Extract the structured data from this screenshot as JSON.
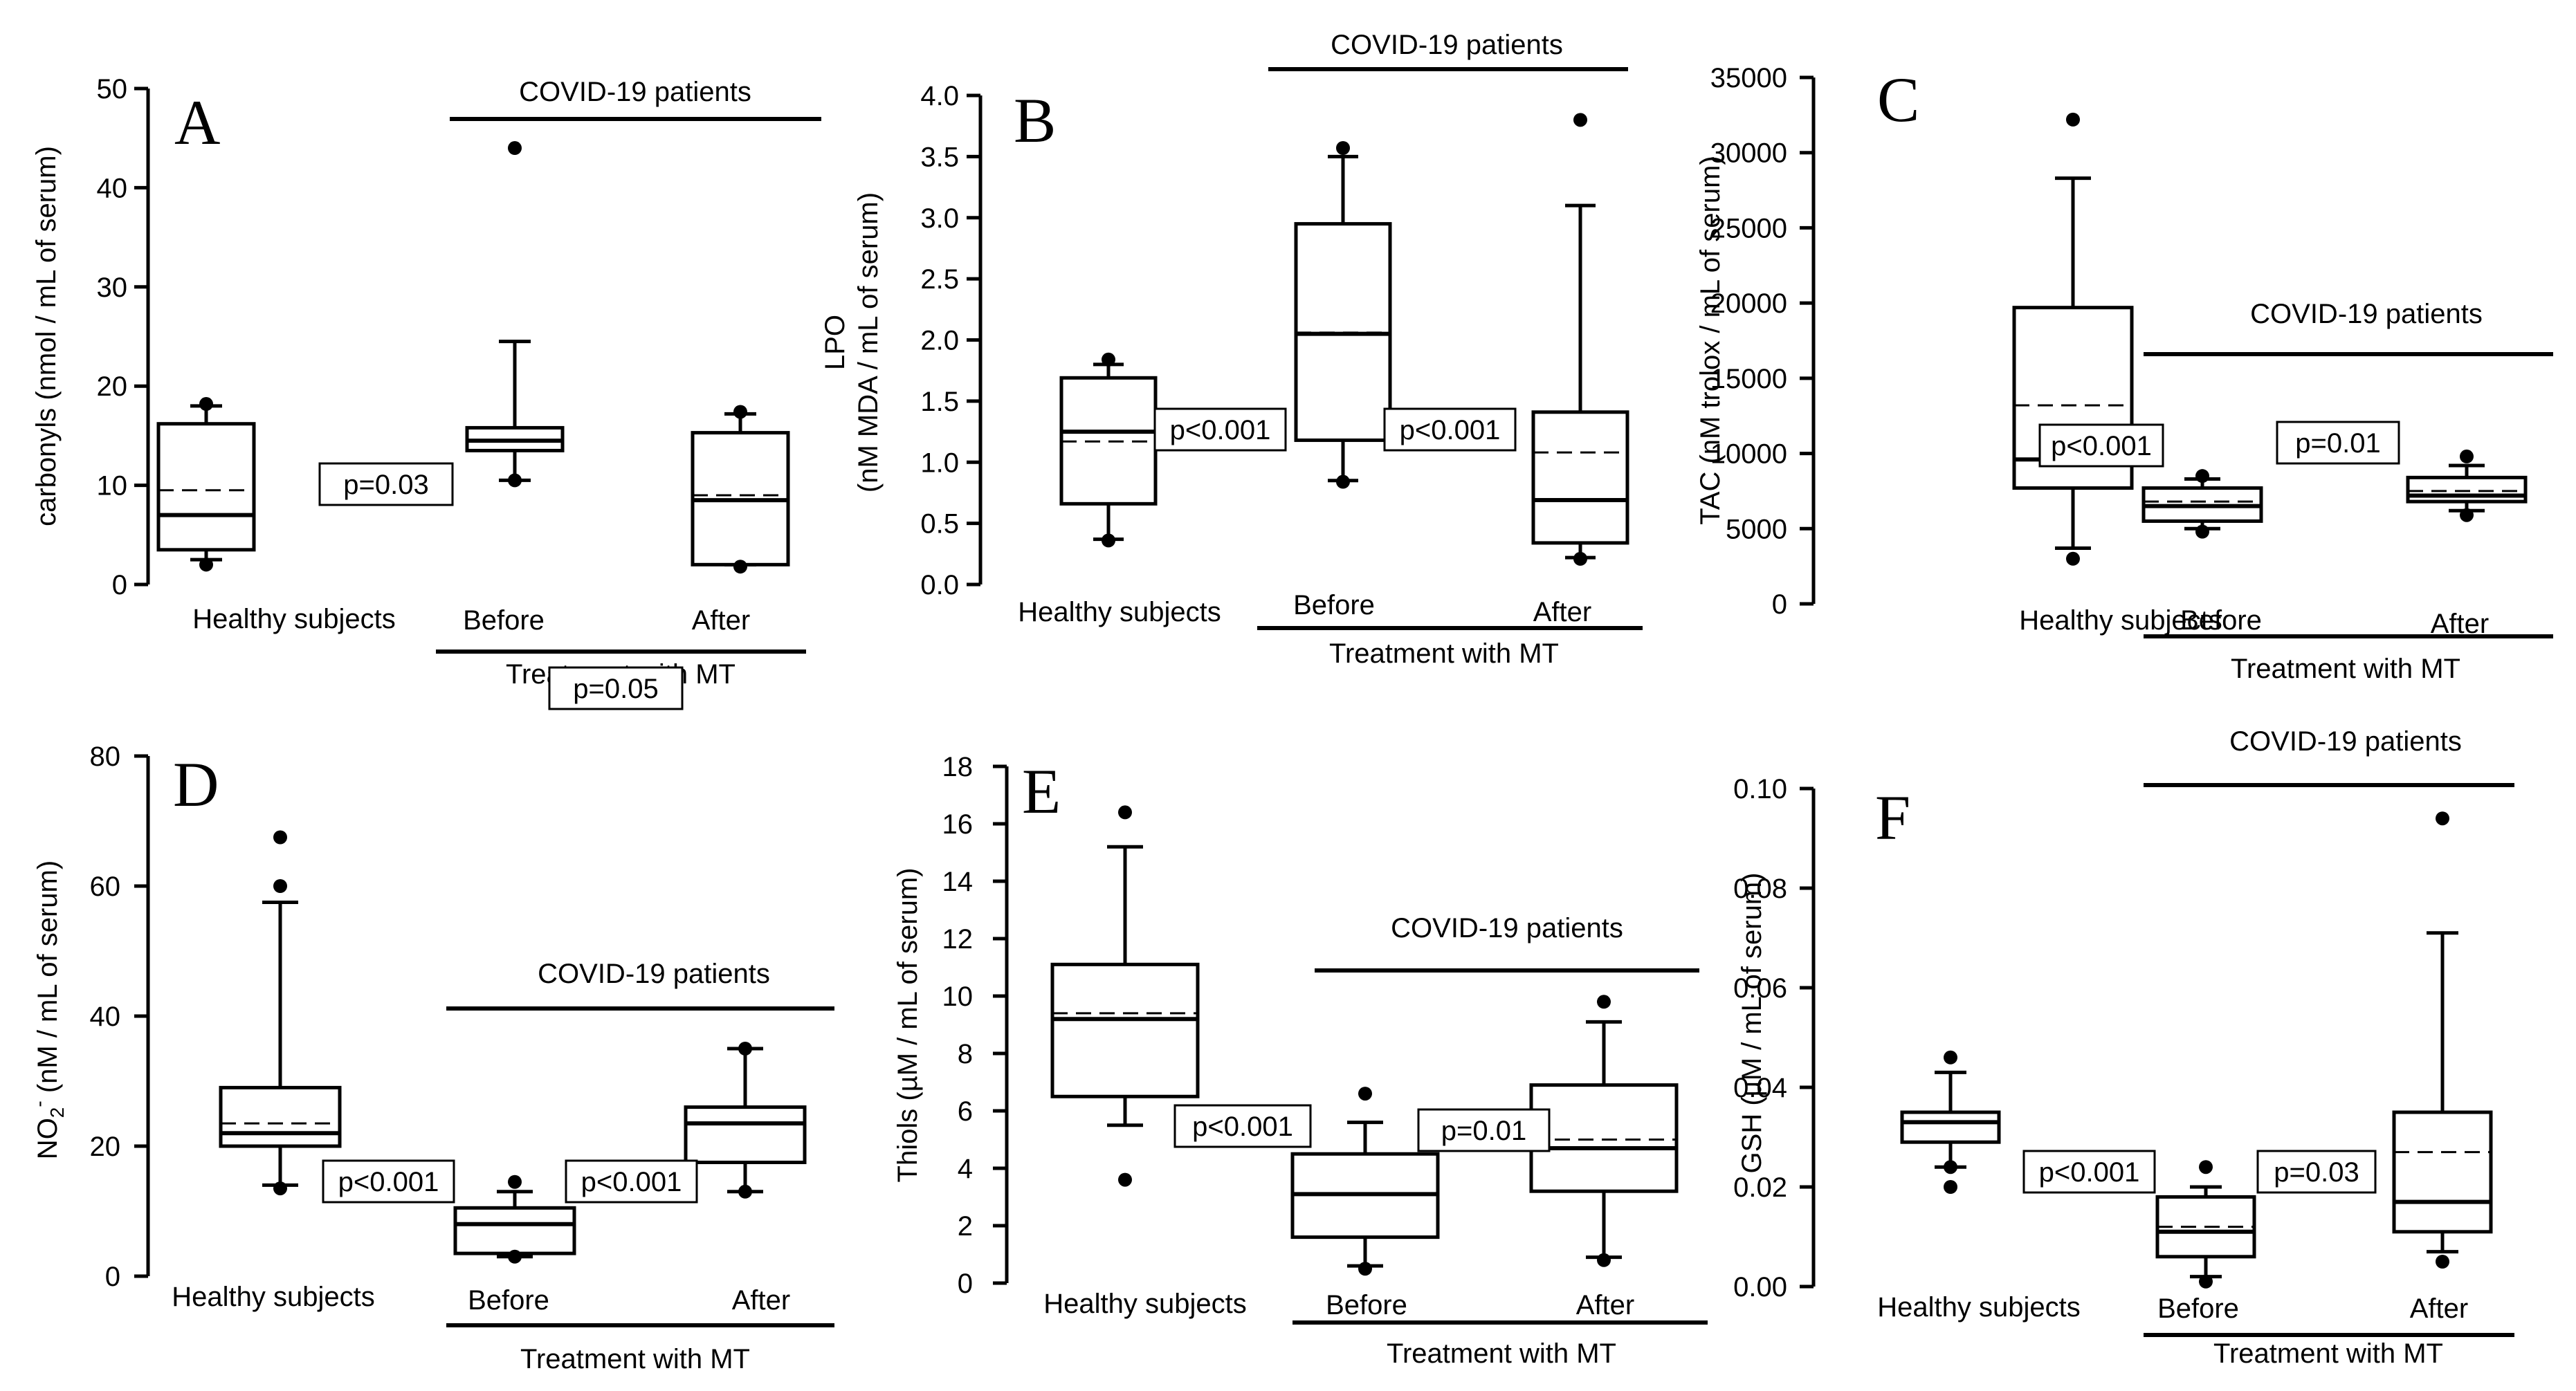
{
  "chart_data": [
    {
      "type": "box",
      "panel_label": "A",
      "ylabel": "carbonyls (nmol / mL of serum)",
      "ylim": [
        0,
        50
      ],
      "yticks": [
        0,
        10,
        20,
        30,
        40,
        50
      ],
      "categories": [
        "Healthy subjects",
        "Before",
        "After"
      ],
      "group_label": "COVID-19 patients",
      "treatment_label": "Treatment with MT",
      "boxes": [
        {
          "name": "Healthy subjects",
          "whisker_low": 2.5,
          "q1": 3.5,
          "median": 7,
          "mean": 9.5,
          "q3": 16.2,
          "whisker_high": 18,
          "outliers": [
            2,
            18.2
          ]
        },
        {
          "name": "Before",
          "whisker_low": 10.5,
          "q1": 13.5,
          "median": 14.5,
          "mean": 14.5,
          "q3": 15.8,
          "whisker_high": 24.5,
          "outliers": [
            10.5,
            44
          ]
        },
        {
          "name": "After",
          "whisker_low": 2,
          "q1": 2,
          "median": 8.5,
          "mean": 9,
          "q3": 15.3,
          "whisker_high": 17.2,
          "outliers": [
            1.8,
            17.4
          ]
        }
      ],
      "annotations": [
        {
          "text": "p=0.03",
          "italic_p": false
        },
        {
          "text": "p=0.05",
          "italic_p": false
        }
      ]
    },
    {
      "type": "box",
      "panel_label": "B",
      "ylabel_line1": "LPO",
      "ylabel_line2": "(nM MDA / mL of serum)",
      "ylim": [
        0,
        4
      ],
      "yticks": [
        "0.0",
        "0.5",
        "1.0",
        "1.5",
        "2.0",
        "2.5",
        "3.0",
        "3.5",
        "4.0"
      ],
      "categories": [
        "Healthy subjects",
        "Before",
        "After"
      ],
      "group_label": "COVID-19 patients",
      "treatment_label": "Treatment with MT",
      "boxes": [
        {
          "name": "Healthy subjects",
          "whisker_low": 0.37,
          "q1": 0.66,
          "median": 1.25,
          "mean": 1.17,
          "q3": 1.69,
          "whisker_high": 1.8,
          "outliers": [
            0.36,
            1.84
          ]
        },
        {
          "name": "Before",
          "whisker_low": 0.85,
          "q1": 1.18,
          "median": 2.05,
          "mean": 2.06,
          "q3": 2.95,
          "whisker_high": 3.5,
          "outliers": [
            0.84,
            3.57
          ]
        },
        {
          "name": "After",
          "whisker_low": 0.22,
          "q1": 0.34,
          "median": 0.69,
          "mean": 1.08,
          "q3": 1.41,
          "whisker_high": 3.1,
          "outliers": [
            0.21,
            3.8
          ]
        }
      ],
      "annotations": [
        {
          "text": "p<0.001",
          "italic_p": true
        },
        {
          "text": "p<0.001",
          "italic_p": true
        }
      ]
    },
    {
      "type": "box",
      "panel_label": "C",
      "ylabel": "TAC (nM trolox / mL of serum)",
      "ylim": [
        0,
        35000
      ],
      "yticks": [
        0,
        5000,
        10000,
        15000,
        20000,
        25000,
        30000,
        35000
      ],
      "categories": [
        "Healthy subjects",
        "Before",
        "After"
      ],
      "group_label": "COVID-19 patients",
      "treatment_label": "Treatment with MT",
      "boxes": [
        {
          "name": "Healthy subjects",
          "whisker_low": 3700,
          "q1": 7700,
          "median": 9600,
          "mean": 13200,
          "q3": 19700,
          "whisker_high": 28300,
          "outliers": [
            3000,
            32200
          ]
        },
        {
          "name": "Before",
          "whisker_low": 5000,
          "q1": 5500,
          "median": 6500,
          "mean": 6800,
          "q3": 7700,
          "whisker_high": 8300,
          "outliers": [
            4800,
            8500
          ]
        },
        {
          "name": "After",
          "whisker_low": 6200,
          "q1": 6800,
          "median": 7200,
          "mean": 7500,
          "q3": 8400,
          "whisker_high": 9200,
          "outliers": [
            5900,
            9800
          ]
        }
      ],
      "annotations": [
        {
          "text": "p<0.001",
          "italic_p": true
        },
        {
          "text": "p=0.01",
          "italic_p": true
        }
      ]
    },
    {
      "type": "box",
      "panel_label": "D",
      "ylabel_main": "NO",
      "ylabel_sub": "2",
      "ylabel_sup": "-",
      "ylabel_rest": " (nM / mL of serum)",
      "ylim": [
        0,
        80
      ],
      "yticks": [
        0,
        20,
        40,
        60,
        80
      ],
      "categories": [
        "Healthy subjects",
        "Before",
        "After"
      ],
      "group_label": "COVID-19 patients",
      "treatment_label": "Treatment with MT",
      "boxes": [
        {
          "name": "Healthy subjects",
          "whisker_low": 14,
          "q1": 20,
          "median": 22,
          "mean": 23.5,
          "q3": 29,
          "whisker_high": 57.5,
          "outliers": [
            13.5,
            60,
            67.5
          ]
        },
        {
          "name": "Before",
          "whisker_low": 3,
          "q1": 3.5,
          "median": 8,
          "mean": 8,
          "q3": 10.5,
          "whisker_high": 13,
          "outliers": [
            3,
            14.5
          ]
        },
        {
          "name": "After",
          "whisker_low": 13,
          "q1": 17.5,
          "median": 23.5,
          "mean": 23.5,
          "q3": 26,
          "whisker_high": 35,
          "outliers": [
            13,
            35
          ]
        }
      ],
      "annotations": [
        {
          "text": "p<0.001",
          "italic_p": true
        },
        {
          "text": "p<0.001",
          "italic_p": true
        }
      ]
    },
    {
      "type": "box",
      "panel_label": "E",
      "ylabel": "Thiols (µM / mL of serum)",
      "ylim": [
        0,
        18
      ],
      "yticks": [
        0,
        2,
        4,
        6,
        8,
        10,
        12,
        14,
        16,
        18
      ],
      "categories": [
        "Healthy subjects",
        "Before",
        "After"
      ],
      "group_label": "COVID-19 patients",
      "treatment_label": "Treatment with MT",
      "boxes": [
        {
          "name": "Healthy subjects",
          "whisker_low": 5.5,
          "q1": 6.5,
          "median": 9.2,
          "mean": 9.4,
          "q3": 11.1,
          "whisker_high": 15.2,
          "outliers": [
            3.6,
            16.4
          ]
        },
        {
          "name": "Before",
          "whisker_low": 0.6,
          "q1": 1.6,
          "median": 3.1,
          "mean": 3.1,
          "q3": 4.5,
          "whisker_high": 5.6,
          "outliers": [
            0.5,
            6.6
          ]
        },
        {
          "name": "After",
          "whisker_low": 0.9,
          "q1": 3.2,
          "median": 4.7,
          "mean": 5.0,
          "q3": 6.9,
          "whisker_high": 9.1,
          "outliers": [
            0.8,
            9.8
          ]
        }
      ],
      "annotations": [
        {
          "text": "p<0.001",
          "italic_p": false
        },
        {
          "text": "p=0.01",
          "italic_p": true
        }
      ]
    },
    {
      "type": "box",
      "panel_label": "F",
      "ylabel": "GSH (µM / mL of serum)",
      "ylim": [
        0,
        0.1
      ],
      "yticks": [
        "0.00",
        "0.02",
        "0.04",
        "0.06",
        "0.08",
        "0.10"
      ],
      "categories": [
        "Healthy subjects",
        "Before",
        "After"
      ],
      "group_label": "COVID-19 patients",
      "treatment_label": "Treatment with MT",
      "boxes": [
        {
          "name": "Healthy subjects",
          "whisker_low": 0.024,
          "q1": 0.029,
          "median": 0.033,
          "mean": 0.033,
          "q3": 0.035,
          "whisker_high": 0.043,
          "outliers": [
            0.02,
            0.024,
            0.046
          ]
        },
        {
          "name": "Before",
          "whisker_low": 0.002,
          "q1": 0.006,
          "median": 0.011,
          "mean": 0.012,
          "q3": 0.018,
          "whisker_high": 0.02,
          "outliers": [
            0.001,
            0.024
          ]
        },
        {
          "name": "After",
          "whisker_low": 0.007,
          "q1": 0.011,
          "median": 0.017,
          "mean": 0.027,
          "q3": 0.035,
          "whisker_high": 0.071,
          "outliers": [
            0.005,
            0.094
          ]
        }
      ],
      "annotations": [
        {
          "text": "p<0.001",
          "italic_p": true
        },
        {
          "text": "p=0.03",
          "italic_p": true
        }
      ]
    }
  ]
}
